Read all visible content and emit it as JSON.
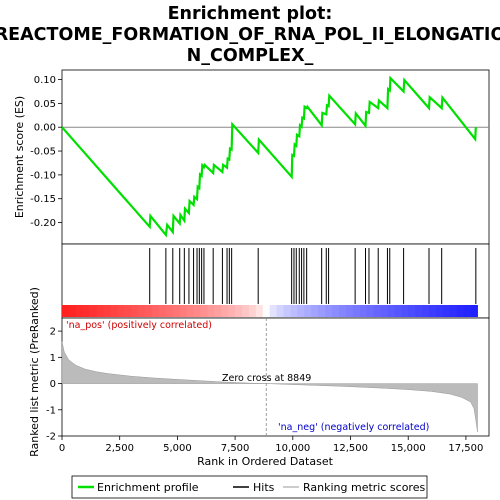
{
  "title_line1": "Enrichment plot:",
  "title_line2": "REACTOME_FORMATION_OF_RNA_POL_II_ELONGATIO",
  "title_line3": "N_COMPLEX_",
  "chart_data": {
    "type": "line",
    "es_panel": {
      "ylabel": "Enrichment score (ES)",
      "ylim": [
        -0.245,
        0.12
      ],
      "yticks": [
        "0.10",
        "0.05",
        "0.00",
        "-0.05",
        "-0.10",
        "-0.15",
        "-0.20"
      ],
      "ytick_values": [
        0.1,
        0.05,
        0.0,
        -0.05,
        -0.1,
        -0.15,
        -0.2
      ],
      "series_color": "#00e000",
      "profile_x": [
        0,
        3800,
        3830,
        4500,
        4560,
        4800,
        4830,
        5100,
        5130,
        5300,
        5330,
        5500,
        5530,
        5700,
        5730,
        5850,
        5880,
        5950,
        5980,
        6050,
        6080,
        6150,
        6180,
        6550,
        6580,
        6950,
        6980,
        7150,
        7180,
        7250,
        7280,
        7350,
        7380,
        8500,
        8530,
        9950,
        9980,
        10050,
        10080,
        10150,
        10180,
        10280,
        10310,
        10380,
        10410,
        10480,
        10510,
        10600,
        10630,
        11250,
        11280,
        11450,
        11480,
        11550,
        11580,
        12700,
        12730,
        13150,
        13180,
        13300,
        13330,
        13700,
        13730,
        14100,
        14130,
        14200,
        14230,
        14800,
        14830,
        15900,
        15930,
        16450,
        16480,
        17900,
        17930
      ],
      "profile_y": [
        0.0,
        -0.209,
        -0.186,
        -0.226,
        -0.205,
        -0.22,
        -0.186,
        -0.202,
        -0.184,
        -0.196,
        -0.171,
        -0.18,
        -0.155,
        -0.163,
        -0.146,
        -0.151,
        -0.125,
        -0.128,
        -0.099,
        -0.102,
        -0.08,
        -0.084,
        -0.079,
        -0.096,
        -0.079,
        -0.094,
        -0.079,
        -0.085,
        -0.066,
        -0.068,
        -0.045,
        -0.047,
        0.006,
        -0.054,
        -0.026,
        -0.104,
        -0.058,
        -0.06,
        -0.036,
        -0.039,
        -0.016,
        -0.019,
        0.004,
        0.001,
        0.02,
        0.018,
        0.043,
        0.04,
        0.043,
        0.004,
        0.03,
        0.027,
        0.046,
        0.044,
        0.066,
        0.006,
        0.029,
        0.003,
        0.032,
        0.03,
        0.053,
        0.04,
        0.056,
        0.04,
        0.08,
        0.077,
        0.103,
        0.075,
        0.099,
        0.04,
        0.063,
        0.04,
        0.062,
        -0.025,
        0.0
      ]
    },
    "hits": [
      3800,
      4500,
      4800,
      5100,
      5300,
      5500,
      5700,
      5850,
      5950,
      6050,
      6150,
      6550,
      6950,
      7150,
      7250,
      7350,
      8500,
      9950,
      10050,
      10150,
      10280,
      10380,
      10480,
      10600,
      11250,
      11450,
      11550,
      12700,
      13150,
      13300,
      13700,
      14100,
      14200,
      14800,
      15900,
      16450,
      17930
    ],
    "rank_panel": {
      "ylabel": "Ranked list metric (PreRanked)",
      "ylim": [
        -2,
        2.5
      ],
      "yticks": [
        "2",
        "1",
        "0",
        "-1",
        "-2"
      ],
      "ytick_values": [
        2,
        1,
        0,
        -1,
        -2
      ],
      "metric_x": [
        0,
        100,
        300,
        600,
        1000,
        1500,
        2000,
        3000,
        4000,
        5000,
        6000,
        7000,
        8000,
        8849,
        10000,
        11000,
        12000,
        13000,
        14000,
        15000,
        16000,
        16800,
        17300,
        17700,
        17850,
        17930,
        18000
      ],
      "metric_y": [
        1.6,
        1.2,
        0.9,
        0.7,
        0.55,
        0.45,
        0.38,
        0.28,
        0.21,
        0.16,
        0.11,
        0.06,
        0.02,
        0.0,
        -0.04,
        -0.07,
        -0.1,
        -0.14,
        -0.18,
        -0.23,
        -0.3,
        -0.4,
        -0.52,
        -0.7,
        -0.95,
        -1.4,
        -1.85
      ]
    },
    "xlabel": "Rank in Ordered Dataset",
    "xlim": [
      0,
      18500
    ],
    "xticks": [
      "0",
      "2,500",
      "5,000",
      "7,500",
      "10,000",
      "12,500",
      "15,000",
      "17,500"
    ],
    "xtick_values": [
      0,
      2500,
      5000,
      7500,
      10000,
      12500,
      15000,
      17500
    ],
    "zero_cross_label": "Zero cross at 8849",
    "zero_cross": 8849,
    "na_pos_label": "'na_pos' (positively correlated)",
    "na_neg_label": "'na_neg' (negatively correlated)",
    "legend": [
      "Enrichment profile",
      "Hits",
      "Ranking metric scores"
    ]
  }
}
